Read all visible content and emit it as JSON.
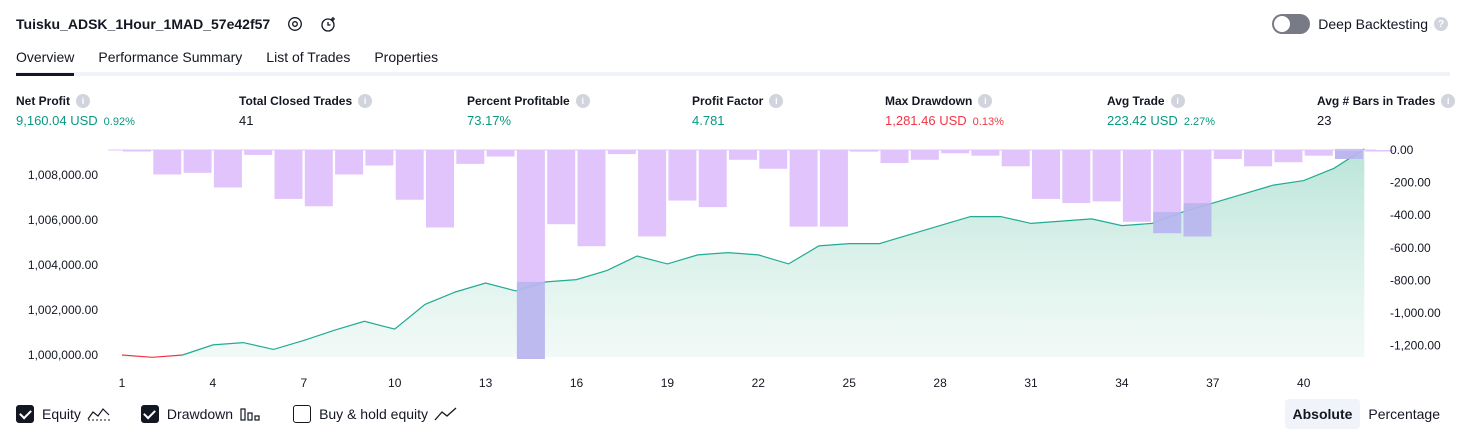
{
  "header": {
    "title": "Tuisku_ADSK_1Hour_1MAD_57e42f57",
    "icons": [
      "settings-icon",
      "add-alert-icon"
    ],
    "deep_backtesting_label": "Deep Backtesting",
    "deep_backtesting_on": false,
    "help": "?"
  },
  "tabs": [
    "Overview",
    "Performance Summary",
    "List of Trades",
    "Properties"
  ],
  "active_tab": "Overview",
  "info_glyph": "i",
  "stats": [
    {
      "label": "Net Profit",
      "value": "9,160.04 USD",
      "pct": "0.92%",
      "color": "#089981"
    },
    {
      "label": "Total Closed Trades",
      "value": "41",
      "pct": "",
      "color": "#131722"
    },
    {
      "label": "Percent Profitable",
      "value": "73.17%",
      "pct": "",
      "color": "#089981"
    },
    {
      "label": "Profit Factor",
      "value": "4.781",
      "pct": "",
      "color": "#089981"
    },
    {
      "label": "Max Drawdown",
      "value": "1,281.46 USD",
      "pct": "0.13%",
      "color": "#f23645"
    },
    {
      "label": "Avg Trade",
      "value": "223.42 USD",
      "pct": "2.27%",
      "color": "#089981"
    },
    {
      "label": "Avg # Bars in Trades",
      "value": "23",
      "pct": "",
      "color": "#131722"
    }
  ],
  "chart_data": {
    "type": "area",
    "x": [
      1,
      2,
      3,
      4,
      5,
      6,
      7,
      8,
      9,
      10,
      11,
      12,
      13,
      14,
      15,
      16,
      17,
      18,
      19,
      20,
      21,
      22,
      23,
      24,
      25,
      26,
      27,
      28,
      29,
      30,
      31,
      32,
      33,
      34,
      35,
      36,
      37,
      38,
      39,
      40,
      41,
      42
    ],
    "x_ticks": [
      "1",
      "4",
      "7",
      "10",
      "13",
      "16",
      "19",
      "22",
      "25",
      "28",
      "31",
      "34",
      "37",
      "40"
    ],
    "equity": [
      1000000,
      999900,
      1000000,
      1000450,
      1000550,
      1000250,
      1000650,
      1001100,
      1001500,
      1001150,
      1002250,
      1002800,
      1003200,
      1002850,
      1003250,
      1003350,
      1003750,
      1004400,
      1004050,
      1004450,
      1004550,
      1004450,
      1004050,
      1004850,
      1004950,
      1004950,
      1005350,
      1005750,
      1006150,
      1006150,
      1005850,
      1005950,
      1006050,
      1005750,
      1005850,
      1006350,
      1006750,
      1007150,
      1007550,
      1007750,
      1008300,
      1009160
    ],
    "drawdown": [
      -5,
      -150,
      -140,
      -230,
      -30,
      -300,
      -345,
      -150,
      -95,
      -305,
      -475,
      -85,
      -40,
      -1281,
      -455,
      -590,
      -25,
      -530,
      -310,
      -350,
      -60,
      -115,
      -470,
      -470,
      -10,
      -80,
      -60,
      -20,
      -35,
      -100,
      -300,
      -325,
      -315,
      -440,
      -510,
      -530,
      -55,
      -100,
      -75,
      -35,
      -55,
      -5
    ],
    "equity_axis": {
      "ticks": [
        "1,000,000.00",
        "1,002,000.00",
        "1,004,000.00",
        "1,006,000.00",
        "1,008,000.00"
      ],
      "ylim": [
        999500,
        1009160
      ]
    },
    "drawdown_axis": {
      "ticks": [
        "0.00",
        "-200.00",
        "-400.00",
        "-600.00",
        "-800.00",
        "-1,000.00",
        "-1,200.00"
      ],
      "ylim": [
        -1300,
        0
      ]
    },
    "colors": {
      "equity_line": "#22ab94",
      "equity_fill": "#b6e3d6",
      "equity_below": "#f23645",
      "drawdown_bar": "#e1c4fb",
      "drawdown_overlap": "#b9b6ee"
    }
  },
  "legend": [
    {
      "label": "Equity",
      "checked": true,
      "icon": "equity-line-icon"
    },
    {
      "label": "Drawdown",
      "checked": true,
      "icon": "drawdown-bars-icon"
    },
    {
      "label": "Buy & hold equity",
      "checked": false,
      "icon": "buy-hold-line-icon"
    }
  ],
  "mode": {
    "absolute": "Absolute",
    "percentage": "Percentage",
    "active": "Absolute"
  }
}
